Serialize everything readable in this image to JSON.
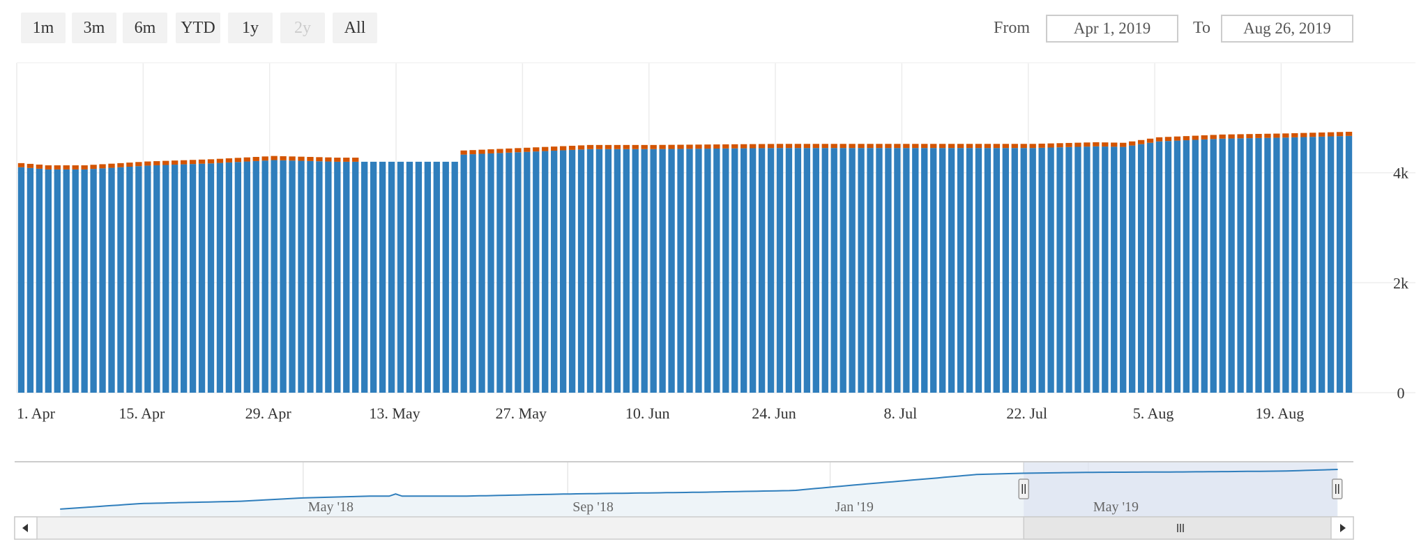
{
  "range_selector": {
    "buttons": [
      {
        "label": "1m",
        "disabled": false
      },
      {
        "label": "3m",
        "disabled": false
      },
      {
        "label": "6m",
        "disabled": false
      },
      {
        "label": "YTD",
        "disabled": false
      },
      {
        "label": "1y",
        "disabled": false
      },
      {
        "label": "2y",
        "disabled": true
      },
      {
        "label": "All",
        "disabled": false
      }
    ],
    "from_label": "From",
    "from_value": "Apr 1, 2019",
    "to_label": "To",
    "to_value": "Aug 26, 2019"
  },
  "colors": {
    "primary_series": "#2f7ebc",
    "secondary_series": "#d35400",
    "navigator_line": "#2f7ebc",
    "navigator_fill": "#eef4f8",
    "navigator_mask": "#dde4f2"
  },
  "chart_data": {
    "type": "bar",
    "stacked": true,
    "start_date": "2019-04-01",
    "days": 148,
    "x_tick_labels": [
      "1. Apr",
      "15. Apr",
      "29. Apr",
      "13. May",
      "27. May",
      "10. Jun",
      "24. Jun",
      "8. Jul",
      "22. Jul",
      "5. Aug",
      "19. Aug"
    ],
    "y_tick_labels": [
      "0",
      "2k",
      "4k"
    ],
    "ylim": [
      0,
      6000
    ],
    "primary_anchors": [
      [
        "2019-04-01",
        4100
      ],
      [
        "2019-04-04",
        4060
      ],
      [
        "2019-04-08",
        4060
      ],
      [
        "2019-04-15",
        4130
      ],
      [
        "2019-04-22",
        4170
      ],
      [
        "2019-04-29",
        4230
      ],
      [
        "2019-05-06",
        4200
      ],
      [
        "2019-05-09",
        4200
      ],
      [
        "2019-05-13",
        4200
      ],
      [
        "2019-05-19",
        4200
      ],
      [
        "2019-05-20",
        4330
      ],
      [
        "2019-05-27",
        4380
      ],
      [
        "2019-06-03",
        4430
      ],
      [
        "2019-06-10",
        4430
      ],
      [
        "2019-06-24",
        4450
      ],
      [
        "2019-07-08",
        4450
      ],
      [
        "2019-07-22",
        4450
      ],
      [
        "2019-07-29",
        4480
      ],
      [
        "2019-08-01",
        4470
      ],
      [
        "2019-08-05",
        4570
      ],
      [
        "2019-08-12",
        4620
      ],
      [
        "2019-08-19",
        4640
      ],
      [
        "2019-08-26",
        4670
      ]
    ],
    "secondary_value": 75,
    "secondary_gaps": [
      [
        "2019-05-09",
        "2019-05-19"
      ]
    ]
  },
  "navigator": {
    "labels": [
      "May '18",
      "Sep '18",
      "Jan '19",
      "May '19"
    ],
    "series_anchors": [
      [
        "2018-01-08",
        0.05
      ],
      [
        "2018-02-15",
        0.18
      ],
      [
        "2018-04-01",
        0.23
      ],
      [
        "2018-05-01",
        0.31
      ],
      [
        "2018-06-01",
        0.35
      ],
      [
        "2018-07-15",
        0.35
      ],
      [
        "2018-09-01",
        0.4
      ],
      [
        "2018-11-01",
        0.44
      ],
      [
        "2018-12-15",
        0.48
      ],
      [
        "2019-01-15",
        0.62
      ],
      [
        "2019-02-15",
        0.75
      ],
      [
        "2019-03-10",
        0.85
      ],
      [
        "2019-04-01",
        0.88
      ],
      [
        "2019-05-01",
        0.9
      ],
      [
        "2019-06-15",
        0.91
      ],
      [
        "2019-08-01",
        0.93
      ],
      [
        "2019-08-26",
        0.97
      ]
    ]
  }
}
